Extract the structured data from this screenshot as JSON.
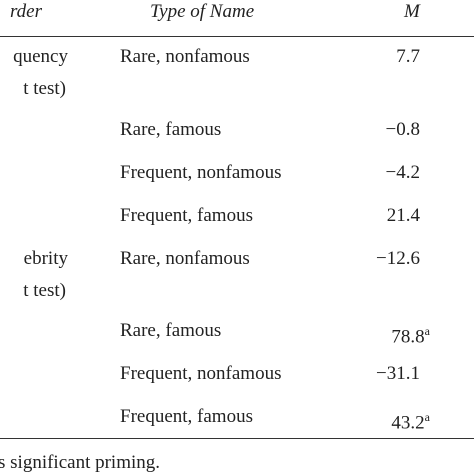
{
  "table": {
    "header": [
      "rder",
      "Type of Name",
      "M"
    ],
    "groups": [
      {
        "label": [
          "quency",
          "t test)"
        ],
        "rows": [
          {
            "type": "Rare, nonfamous",
            "m": "7.7"
          },
          {
            "type": "Rare, famous",
            "m": "−0.8"
          },
          {
            "type": "Frequent, nonfamous",
            "m": "−4.2"
          },
          {
            "type": "Frequent, famous",
            "m": "21.4"
          }
        ]
      },
      {
        "label": [
          "ebrity",
          "t test)"
        ],
        "rows": [
          {
            "type": "Rare, nonfamous",
            "m": "−12.6"
          },
          {
            "type": "Rare, famous",
            "m": "78.8",
            "note": "a"
          },
          {
            "type": "Frequent, nonfamous",
            "m": "−31.1"
          },
          {
            "type": "Frequent, famous",
            "m": "43.2",
            "note": "a"
          }
        ]
      }
    ],
    "footnote": "s significant priming."
  }
}
